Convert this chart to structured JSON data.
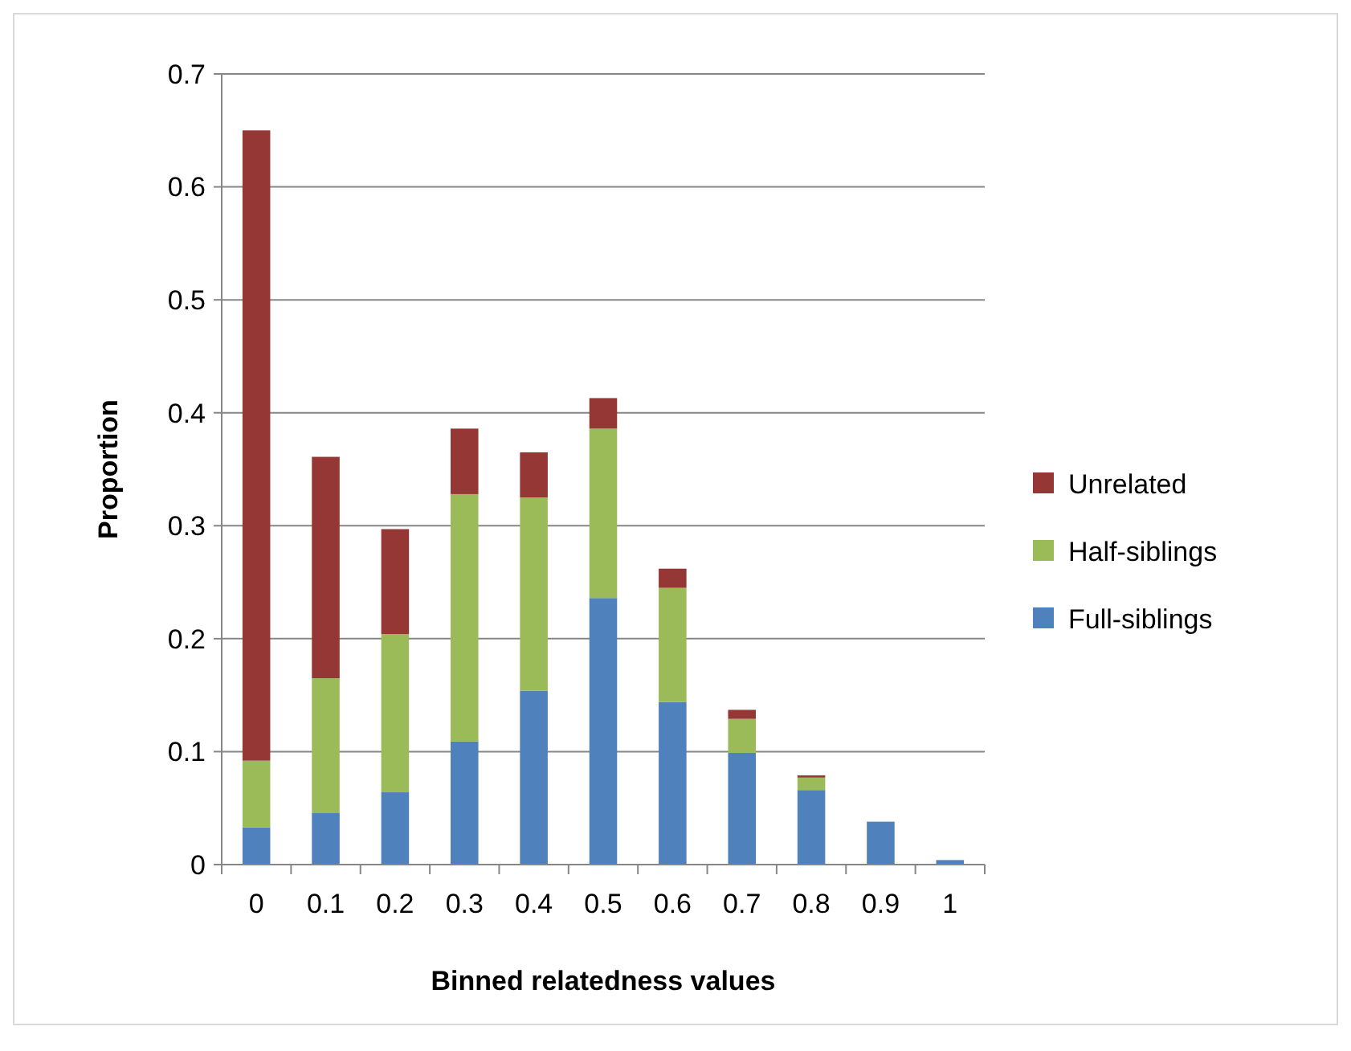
{
  "chart_data": {
    "type": "bar",
    "stacked": true,
    "xlabel": "Binned relatedness values",
    "ylabel": "Proportion",
    "categories": [
      "0",
      "0.1",
      "0.2",
      "0.3",
      "0.4",
      "0.5",
      "0.6",
      "0.7",
      "0.8",
      "0.9",
      "1"
    ],
    "series": [
      {
        "name": "Full-siblings",
        "color": "#4f81bd",
        "values": [
          0.033,
          0.046,
          0.064,
          0.109,
          0.154,
          0.236,
          0.144,
          0.099,
          0.066,
          0.038,
          0.004
        ]
      },
      {
        "name": "Half-siblings",
        "color": "#9bbb59",
        "values": [
          0.059,
          0.119,
          0.14,
          0.219,
          0.171,
          0.15,
          0.101,
          0.03,
          0.011,
          0,
          0
        ]
      },
      {
        "name": "Unrelated",
        "color": "#953735",
        "values": [
          0.558,
          0.196,
          0.093,
          0.058,
          0.04,
          0.027,
          0.017,
          0.008,
          0.002,
          0,
          0
        ]
      }
    ],
    "ylim": [
      0,
      0.7
    ],
    "yticks": [
      0,
      0.1,
      0.2,
      0.3,
      0.4,
      0.5,
      0.6,
      0.7
    ],
    "grid": "y",
    "legend": "right"
  }
}
